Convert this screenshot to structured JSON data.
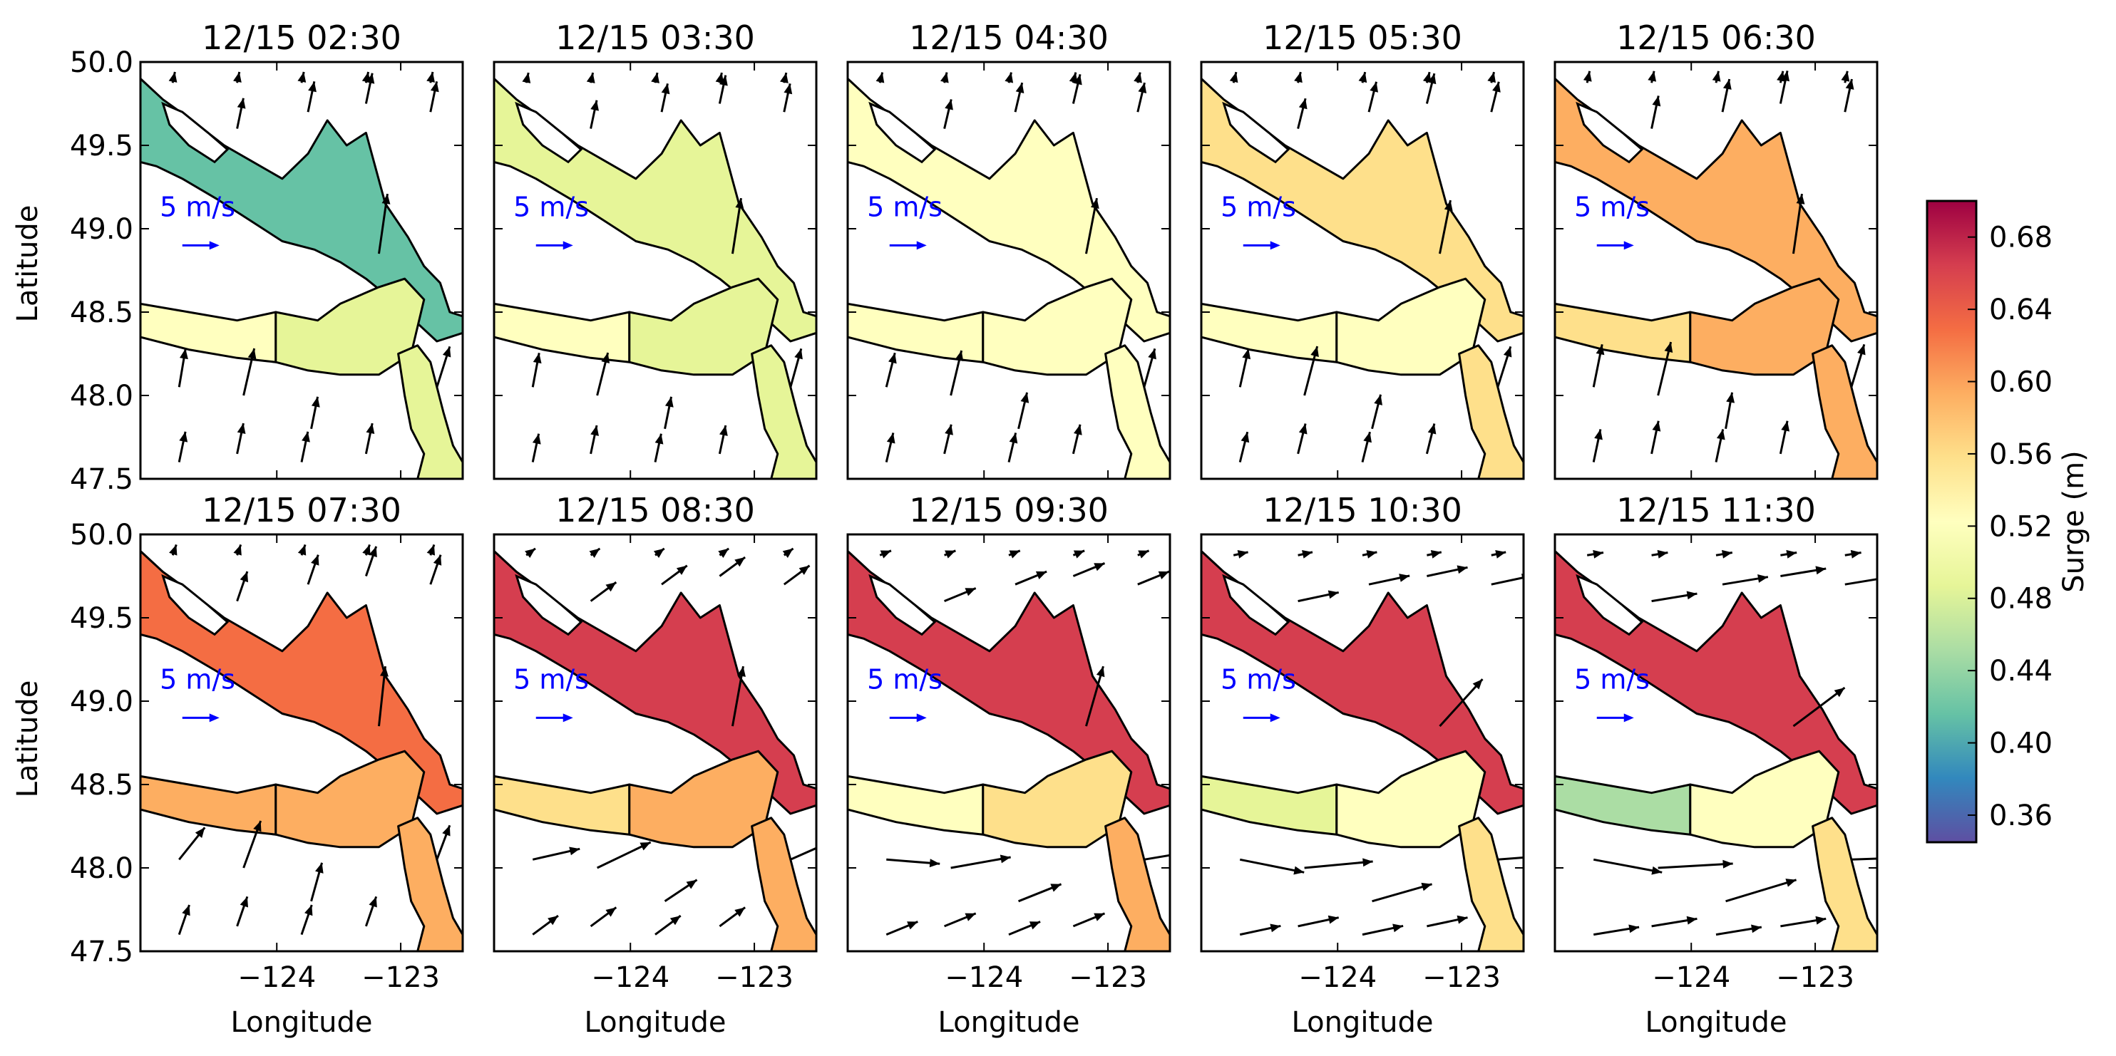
{
  "figure": {
    "xlabel": "Longitude",
    "ylabel": "Latitude",
    "colorbar_label": "Surge (m)",
    "scale_label": "5 m/s",
    "text_color": "#000000",
    "scale_color": "#0000ff"
  },
  "chart_data": {
    "type": "heatmap",
    "panel_titles": [
      "12/15 02:30",
      "12/15 03:30",
      "12/15 04:30",
      "12/15 05:30",
      "12/15 06:30",
      "12/15 07:30",
      "12/15 08:30",
      "12/15 09:30",
      "12/15 10:30",
      "12/15 11:30"
    ],
    "x_ticks": [
      {
        "label": "−124",
        "value": -124
      },
      {
        "label": "−123",
        "value": -123
      }
    ],
    "y_ticks": [
      "50.0",
      "49.5",
      "49.0",
      "48.5",
      "48.0",
      "47.5"
    ],
    "xlim": [
      -125.1,
      -122.5
    ],
    "ylim": [
      47.5,
      50.0
    ],
    "colorbar_ticks": [
      "0.36",
      "0.40",
      "0.44",
      "0.48",
      "0.52",
      "0.56",
      "0.60",
      "0.64",
      "0.68"
    ],
    "colorbar_range": [
      0.345,
      0.7
    ],
    "colormap": [
      "#5e4fa2",
      "#3288bd",
      "#66c2a5",
      "#abdda4",
      "#e6f598",
      "#ffffbf",
      "#fee08b",
      "#fdae61",
      "#f46d43",
      "#d53e4f",
      "#9e0142"
    ],
    "surge_levels": {
      "strait_of_georgia": [
        0.4,
        0.48,
        0.52,
        0.56,
        0.58,
        0.62,
        0.65,
        0.67,
        0.68,
        0.67
      ],
      "juan_de_fuca_west": [
        0.52,
        0.51,
        0.51,
        0.52,
        0.57,
        0.59,
        0.55,
        0.53,
        0.47,
        0.45
      ],
      "juan_de_fuca_east": [
        0.49,
        0.5,
        0.51,
        0.54,
        0.58,
        0.6,
        0.58,
        0.55,
        0.53,
        0.54
      ],
      "puget_sound": [
        0.47,
        0.5,
        0.52,
        0.55,
        0.58,
        0.59,
        0.59,
        0.58,
        0.57,
        0.57
      ]
    },
    "wind_vectors": [
      [
        [
          0.3,
          1.8
        ],
        [
          0.5,
          2.2
        ],
        [
          0.3,
          1.5
        ],
        [
          0.4,
          2.8
        ],
        [
          0.6,
          1.9
        ]
      ],
      [
        [
          0.3,
          1.6
        ],
        [
          0.5,
          2.0
        ],
        [
          0.3,
          1.5
        ],
        [
          0.4,
          2.6
        ],
        [
          0.5,
          1.8
        ]
      ],
      [
        [
          0.4,
          1.6
        ],
        [
          0.5,
          2.1
        ],
        [
          0.4,
          1.7
        ],
        [
          0.5,
          2.6
        ],
        [
          0.5,
          1.8
        ]
      ],
      [
        [
          0.4,
          1.8
        ],
        [
          0.6,
          2.3
        ],
        [
          0.4,
          1.6
        ],
        [
          0.5,
          2.5
        ],
        [
          0.6,
          1.9
        ]
      ],
      [
        [
          0.4,
          2.0
        ],
        [
          0.6,
          2.5
        ],
        [
          0.3,
          1.7
        ],
        [
          0.4,
          2.8
        ],
        [
          0.6,
          2.0
        ]
      ],
      [
        [
          1.2,
          1.5
        ],
        [
          0.8,
          2.2
        ],
        [
          0.5,
          1.8
        ],
        [
          0.3,
          2.8
        ],
        [
          0.6,
          1.6
        ]
      ],
      [
        [
          2.2,
          0.5
        ],
        [
          2.5,
          1.2
        ],
        [
          1.5,
          1.0
        ],
        [
          0.5,
          2.8
        ],
        [
          1.8,
          0.8
        ]
      ],
      [
        [
          2.5,
          -0.2
        ],
        [
          2.8,
          0.5
        ],
        [
          2.0,
          0.8
        ],
        [
          0.8,
          2.8
        ],
        [
          2.4,
          0.4
        ]
      ],
      [
        [
          3.0,
          -0.6
        ],
        [
          3.2,
          0.3
        ],
        [
          2.8,
          0.8
        ],
        [
          2.0,
          2.2
        ],
        [
          2.6,
          0.2
        ]
      ],
      [
        [
          3.2,
          -0.6
        ],
        [
          3.5,
          0.2
        ],
        [
          3.3,
          1.0
        ],
        [
          2.4,
          1.8
        ],
        [
          2.8,
          0.1
        ]
      ]
    ]
  }
}
